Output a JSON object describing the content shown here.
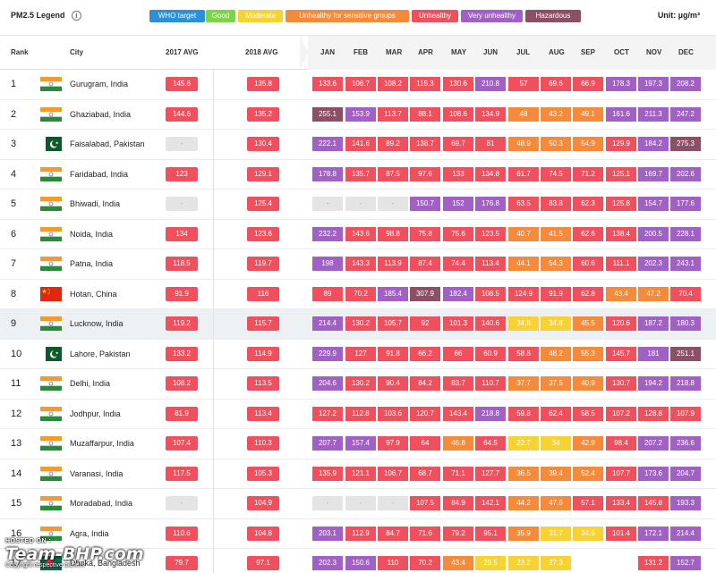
{
  "legend": {
    "title": "PM2.5 Legend",
    "info_icon": "i",
    "unit": "Unit: µg/m³",
    "items": [
      {
        "label": "WHO target",
        "color": "#2f8fd6"
      },
      {
        "label": "Good",
        "color": "#7bd44a"
      },
      {
        "label": "Moderate",
        "color": "#f6d232"
      },
      {
        "label": "Unhealthy for sensitive groups",
        "color": "#f58a3a"
      },
      {
        "label": "Unhealthy",
        "color": "#f0505e"
      },
      {
        "label": "Very unhealthy",
        "color": "#a160c4"
      },
      {
        "label": "Hazardous",
        "color": "#8b4f66"
      }
    ]
  },
  "headers": {
    "rank": "Rank",
    "city": "City",
    "avg2017": "2017 AVG",
    "avg2018": "2018 AVG",
    "months": [
      "JAN",
      "FEB",
      "MAR",
      "APR",
      "MAY",
      "JUN",
      "JUL",
      "AUG",
      "SEP",
      "OCT",
      "NOV",
      "DEC"
    ]
  },
  "rows": [
    {
      "rank": "1",
      "city": "Gurugram, India",
      "flag": "india",
      "avg2017": "145.6",
      "avg2018": "135.8",
      "months": [
        "133.6",
        "106.7",
        "108.2",
        "115.3",
        "130.6",
        "210.8",
        "57",
        "69.6",
        "66.9",
        "178.3",
        "197.3",
        "208.2"
      ]
    },
    {
      "rank": "2",
      "city": "Ghaziabad, India",
      "flag": "india",
      "avg2017": "144.6",
      "avg2018": "135.2",
      "months": [
        "255.1",
        "153.9",
        "113.7",
        "88.1",
        "108.6",
        "134.9",
        "48",
        "43.2",
        "49.1",
        "161.6",
        "211.3",
        "247.2"
      ]
    },
    {
      "rank": "3",
      "city": "Faisalabad, Pakistan",
      "flag": "pakistan",
      "avg2017": "-",
      "avg2018": "130.4",
      "months": [
        "222.1",
        "141.6",
        "89.2",
        "138.7",
        "69.7",
        "81",
        "48.9",
        "50.3",
        "54.9",
        "129.9",
        "184.2",
        "275.3"
      ]
    },
    {
      "rank": "4",
      "city": "Faridabad, India",
      "flag": "india",
      "avg2017": "123",
      "avg2018": "129.1",
      "months": [
        "178.8",
        "135.7",
        "87.5",
        "97.6",
        "133",
        "134.8",
        "61.7",
        "74.5",
        "71.2",
        "125.1",
        "169.7",
        "202.6"
      ]
    },
    {
      "rank": "5",
      "city": "Bhiwadi, India",
      "flag": "india",
      "avg2017": "-",
      "avg2018": "125.4",
      "months": [
        "-",
        "-",
        "-",
        "150.7",
        "152",
        "176.8",
        "63.5",
        "83.8",
        "62.3",
        "125.8",
        "154.7",
        "177.6"
      ]
    },
    {
      "rank": "6",
      "city": "Noida, India",
      "flag": "india",
      "avg2017": "134",
      "avg2018": "123.6",
      "months": [
        "232.2",
        "143.6",
        "98.8",
        "75.8",
        "75.6",
        "123.5",
        "40.7",
        "41.5",
        "62.6",
        "138.4",
        "200.5",
        "228.1"
      ]
    },
    {
      "rank": "7",
      "city": "Patna, India",
      "flag": "india",
      "avg2017": "118.5",
      "avg2018": "119.7",
      "months": [
        "198",
        "143.3",
        "113.9",
        "87.4",
        "74.4",
        "113.4",
        "44.1",
        "54.3",
        "60.6",
        "111.1",
        "202.3",
        "243.1"
      ]
    },
    {
      "rank": "8",
      "city": "Hotan, China",
      "flag": "china",
      "avg2017": "91.9",
      "avg2018": "116",
      "months": [
        "89",
        "70.2",
        "185.4",
        "307.9",
        "182.4",
        "108.5",
        "124.9",
        "91.9",
        "62.8",
        "43.4",
        "47.2",
        "70.4"
      ]
    },
    {
      "rank": "9",
      "city": "Lucknow, India",
      "flag": "india",
      "avg2017": "119.2",
      "avg2018": "115.7",
      "months": [
        "214.4",
        "130.2",
        "105.7",
        "92",
        "101.3",
        "140.6",
        "34.8",
        "34.8",
        "45.5",
        "120.6",
        "187.2",
        "180.3"
      ]
    },
    {
      "rank": "10",
      "city": "Lahore, Pakistan",
      "flag": "pakistan",
      "avg2017": "133.2",
      "avg2018": "114.9",
      "months": [
        "229.9",
        "127",
        "91.8",
        "66.2",
        "66",
        "60.9",
        "58.8",
        "48.2",
        "55.3",
        "145.7",
        "181",
        "251.1"
      ]
    },
    {
      "rank": "11",
      "city": "Delhi, India",
      "flag": "india",
      "avg2017": "108.2",
      "avg2018": "113.5",
      "months": [
        "204.6",
        "130.2",
        "90.4",
        "84.2",
        "83.7",
        "110.7",
        "37.7",
        "37.5",
        "40.9",
        "130.7",
        "194.2",
        "218.8"
      ]
    },
    {
      "rank": "12",
      "city": "Jodhpur, India",
      "flag": "india",
      "avg2017": "81.9",
      "avg2018": "113.4",
      "months": [
        "127.2",
        "112.8",
        "103.6",
        "120.7",
        "143.4",
        "218.8",
        "59.8",
        "62.4",
        "58.5",
        "107.2",
        "128.8",
        "107.9"
      ]
    },
    {
      "rank": "13",
      "city": "Muzaffarpur, India",
      "flag": "india",
      "avg2017": "107.4",
      "avg2018": "110.3",
      "months": [
        "207.7",
        "157.4",
        "97.9",
        "64",
        "46.8",
        "64.5",
        "22.7",
        "34",
        "42.9",
        "98.4",
        "207.2",
        "236.6"
      ]
    },
    {
      "rank": "14",
      "city": "Varanasi, India",
      "flag": "india",
      "avg2017": "117.5",
      "avg2018": "105.3",
      "months": [
        "135.9",
        "121.1",
        "106.7",
        "68.7",
        "71.1",
        "127.7",
        "36.5",
        "39.4",
        "52.4",
        "107.7",
        "173.6",
        "204.7"
      ]
    },
    {
      "rank": "15",
      "city": "Moradabad, India",
      "flag": "india",
      "avg2017": "-",
      "avg2018": "104.9",
      "months": [
        "-",
        "-",
        "-",
        "107.5",
        "84.9",
        "142.1",
        "44.2",
        "47.6",
        "57.1",
        "133.4",
        "145.8",
        "193.3"
      ]
    },
    {
      "rank": "16",
      "city": "Agra, India",
      "flag": "india",
      "avg2017": "110.6",
      "avg2018": "104.8",
      "months": [
        "203.1",
        "112.9",
        "84.7",
        "71.6",
        "79.2",
        "95.1",
        "35.9",
        "31.7",
        "34.6",
        "101.4",
        "172.1",
        "214.4"
      ]
    },
    {
      "rank": "17",
      "city": "Dhaka, Bangladesh",
      "flag": "bangladesh",
      "avg2017": "79.7",
      "avg2018": "97.1",
      "months": [
        "202.3",
        "150.6",
        "110",
        "70.2",
        "43.4",
        "29.5",
        "23.2",
        "27.3",
        "",
        "",
        "131.2",
        "152.7"
      ]
    }
  ],
  "colors": {
    "na": "#e4e4e4",
    "moderate": "#f6d232",
    "usg": "#f58a3a",
    "unhealthy": "#f0505e",
    "very_unhealthy": "#a160c4",
    "hazardous": "#8b4f66"
  },
  "highlight_rank": "9",
  "watermark": {
    "hosted_on": "HOSTED ON :",
    "logo": "Team-BHP.com",
    "copyright": "Copyright respective owners"
  }
}
